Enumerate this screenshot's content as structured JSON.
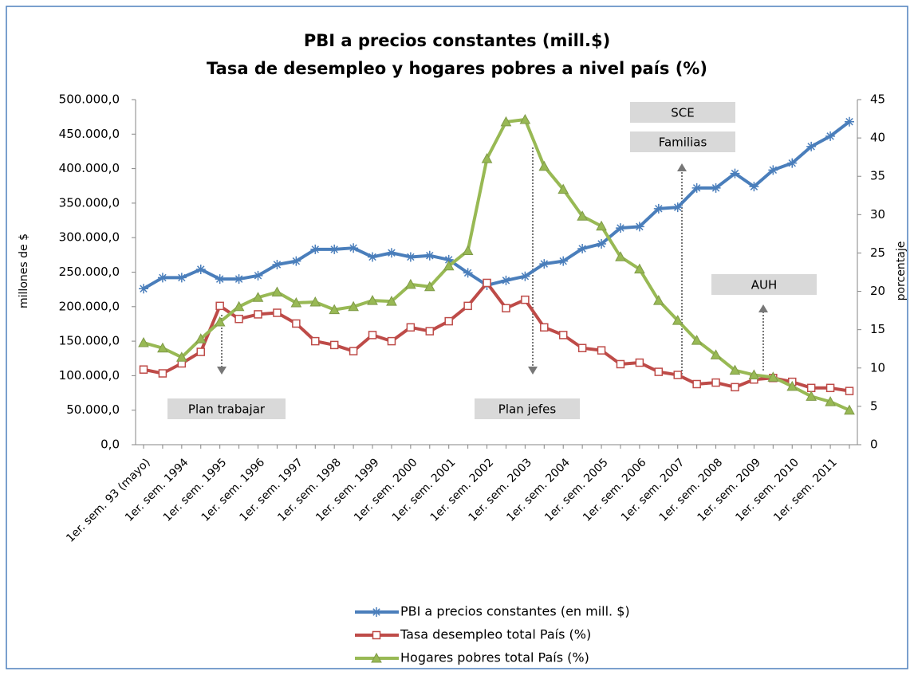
{
  "chart_data": {
    "type": "line",
    "title": [
      "PBI a precios constantes (mill.$)",
      "Tasa de desempleo y hogares pobres a nivel país (%)"
    ],
    "y_label": "millones de $",
    "y2_label": "porcentaje",
    "categories": [
      "1er. sem. 93 (mayo)",
      null,
      "1er. sem. 1994",
      null,
      "1er. sem. 1995",
      null,
      "1er. sem. 1996",
      null,
      "1er. sem. 1997",
      null,
      "1er. sem. 1998",
      null,
      "1er. sem. 1999",
      null,
      "1er. sem. 2000",
      null,
      "1er. sem. 2001",
      null,
      "1er. sem. 2002",
      null,
      "1er. sem. 2003",
      null,
      "1er. sem. 2004",
      null,
      "1er. sem. 2005",
      null,
      "1er. sem. 2006",
      null,
      "1er. sem. 2007",
      null,
      "1er. sem. 2008",
      null,
      "1er. sem. 2009",
      null,
      "1er. sem. 2010",
      null,
      "1er. sem. 2011",
      null
    ],
    "series": [
      {
        "name": "PBI a precios constantes (en mill. $)",
        "color": "#4a7ebb",
        "marker": "star",
        "axis": "y",
        "values": [
          226000,
          242000,
          242000,
          254000,
          240000,
          240000,
          245000,
          261000,
          266000,
          283000,
          283000,
          285000,
          272000,
          278000,
          272000,
          274000,
          268000,
          249000,
          231000,
          238000,
          244000,
          262000,
          266000,
          284000,
          291000,
          314000,
          316000,
          342000,
          344000,
          372000,
          372000,
          393000,
          374000,
          398000,
          408000,
          432000,
          447000,
          468000
        ]
      },
      {
        "name": "Tasa desempleo total País (%)",
        "color": "#be4b48",
        "marker": "square",
        "axis": "y2",
        "values": [
          9.8,
          9.3,
          10.6,
          12.1,
          18.1,
          16.4,
          17.0,
          17.2,
          15.8,
          13.5,
          13.0,
          12.2,
          14.3,
          13.5,
          15.3,
          14.8,
          16.1,
          18.1,
          21.1,
          17.8,
          18.9,
          15.3,
          14.3,
          12.6,
          12.3,
          10.5,
          10.7,
          9.5,
          9.1,
          7.9,
          8.1,
          7.5,
          8.5,
          8.7,
          8.2,
          7.4,
          7.4,
          7.0
        ]
      },
      {
        "name": "Hogares pobres total País (%)",
        "color": "#98b954",
        "marker": "triangle",
        "axis": "y2",
        "values": [
          13.3,
          12.6,
          11.4,
          13.8,
          16.0,
          18.0,
          19.2,
          19.9,
          18.5,
          18.6,
          17.6,
          18.0,
          18.8,
          18.7,
          20.9,
          20.6,
          23.3,
          25.3,
          37.3,
          42.1,
          42.4,
          36.3,
          33.3,
          29.8,
          28.5,
          24.5,
          22.9,
          18.8,
          16.2,
          13.6,
          11.7,
          9.7,
          9.1,
          8.8,
          7.6,
          6.3,
          5.6,
          4.5
        ]
      }
    ],
    "ylim": [
      0,
      500000
    ],
    "yticks": [
      {
        "value": 0,
        "label": "0,0"
      },
      {
        "value": 50000,
        "label": "50.000,0"
      },
      {
        "value": 100000,
        "label": "100.000,0"
      },
      {
        "value": 150000,
        "label": "150.000,0"
      },
      {
        "value": 200000,
        "label": "200.000,0"
      },
      {
        "value": 250000,
        "label": "250.000,0"
      },
      {
        "value": 300000,
        "label": "300.000,0"
      },
      {
        "value": 350000,
        "label": "350.000,0"
      },
      {
        "value": 400000,
        "label": "400.000,0"
      },
      {
        "value": 450000,
        "label": "450.000,0"
      },
      {
        "value": 500000,
        "label": "500.000,0"
      }
    ],
    "y2lim": [
      0,
      45
    ],
    "y2ticks": [
      0,
      5,
      10,
      15,
      20,
      25,
      30,
      35,
      40,
      45
    ],
    "annotations": [
      "Plan trabajar",
      "Plan jefes",
      "SCE",
      "Familias",
      "AUH"
    ],
    "grid": false
  }
}
